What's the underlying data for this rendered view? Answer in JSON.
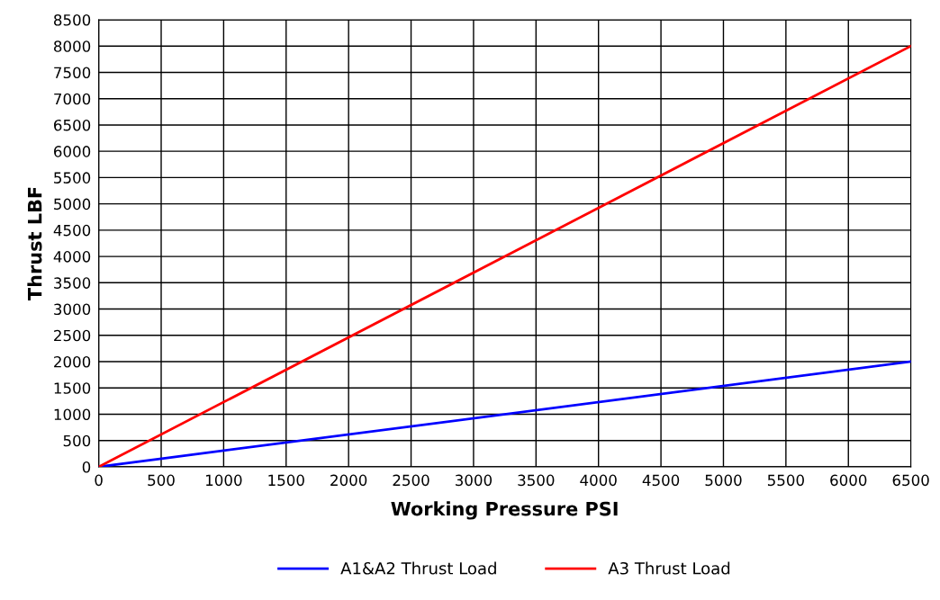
{
  "chart_data": {
    "type": "line",
    "xlabel": "Working Pressure PSI",
    "ylabel": "Thrust LBF",
    "series": [
      {
        "name": "A1&A2 Thrust Load",
        "color": "#0000ff",
        "values": [
          0,
          2000
        ]
      },
      {
        "name": "A3 Thrust Load",
        "color": "#ff0000",
        "values": [
          0,
          8000
        ]
      }
    ],
    "x": [
      0,
      6500
    ],
    "xlim": [
      0,
      6500
    ],
    "xticks": [
      0,
      500,
      1000,
      1500,
      2000,
      2500,
      3000,
      3500,
      4000,
      4500,
      5000,
      5500,
      6000,
      6500
    ],
    "ylim": [
      0,
      8500
    ],
    "yticks": [
      0,
      500,
      1000,
      1500,
      2000,
      2500,
      3000,
      3500,
      4000,
      4500,
      5000,
      5500,
      6000,
      6500,
      7000,
      7500,
      8000,
      8500
    ],
    "grid": true,
    "legend": "bottom",
    "line_style": "solid",
    "marker": "none"
  }
}
